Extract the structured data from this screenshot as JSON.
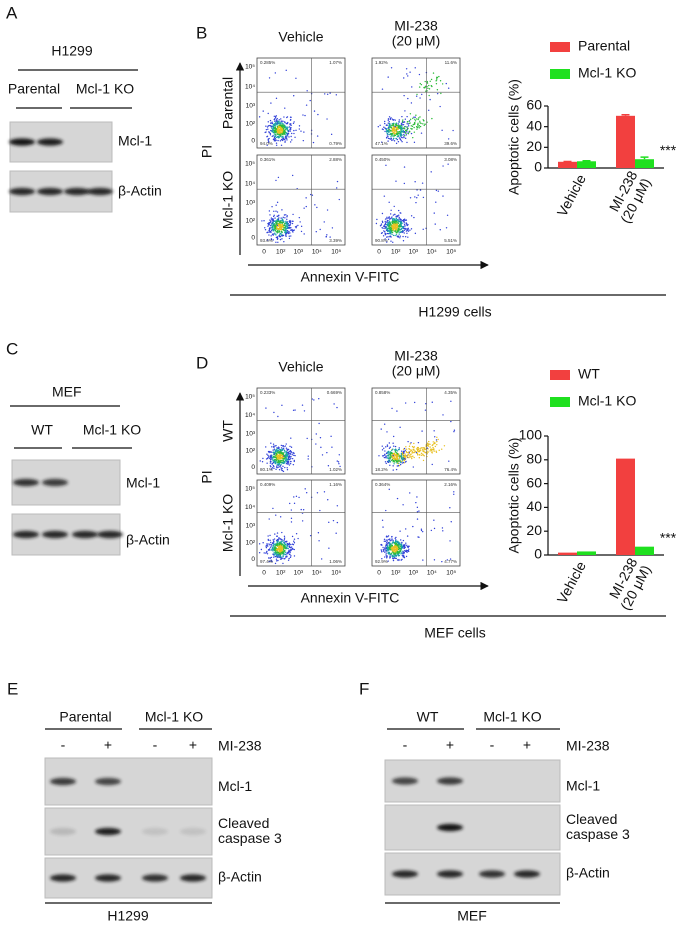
{
  "panels": {
    "A": {
      "label": "A",
      "title": "H1299",
      "groups": [
        "Parental",
        "Mcl-1 KO"
      ],
      "bands": [
        "Mcl-1",
        "β-Actin"
      ]
    },
    "B": {
      "label": "B",
      "columns": [
        "Vehicle",
        "MI-238\n(20 μM)"
      ],
      "rows": [
        "Parental",
        "Mcl-1 KO"
      ],
      "y_axis": "PI",
      "x_axis": "Annexin V-FITC",
      "axis_ticks": [
        "0",
        "10²",
        "10³",
        "10⁴",
        "10⁵"
      ],
      "quadrants": [
        [
          [
            "0.285%",
            "1.07%",
            "94.0%",
            "0.79%"
          ],
          [
            "1.92%",
            "11.6%",
            "47.1%",
            "39.6%"
          ]
        ],
        [
          [
            "0.361%",
            "2.88%",
            "93.6%",
            "3.39%"
          ],
          [
            "0.450%",
            "3.08%",
            "90.8%",
            "5.51%"
          ]
        ]
      ],
      "caption": "H1299 cells"
    },
    "C": {
      "label": "C",
      "title": "MEF",
      "groups": [
        "WT",
        "Mcl-1 KO"
      ],
      "bands": [
        "Mcl-1",
        "β-Actin"
      ]
    },
    "D": {
      "label": "D",
      "columns": [
        "Vehicle",
        "MI-238\n(20 μM)"
      ],
      "rows": [
        "WT",
        "Mcl-1 KO"
      ],
      "y_axis": "PI",
      "x_axis": "Annexin V-FITC",
      "axis_ticks": [
        "0",
        "10²",
        "10³",
        "10⁴",
        "10⁵"
      ],
      "quadrants": [
        [
          [
            "0.233%",
            "0.669%",
            "80.1%",
            "1.02%"
          ],
          [
            "0.858%",
            "4.35%",
            "18.2%",
            "76.4%"
          ]
        ],
        [
          [
            "0.409%",
            "1.16%",
            "97.4%",
            "1.06%"
          ],
          [
            "0.364%",
            "2.16%",
            "92.9%",
            "4.77%"
          ]
        ]
      ],
      "caption": "MEF cells"
    },
    "E": {
      "label": "E",
      "groups": [
        "Parental",
        "Mcl-1 KO"
      ],
      "treatment_marks": [
        "-",
        "+",
        "-",
        "+"
      ],
      "treatment": "MI-238",
      "bands": [
        "Mcl-1",
        "Cleaved\ncaspase 3",
        "β-Actin"
      ],
      "caption": "H1299"
    },
    "F": {
      "label": "F",
      "groups": [
        "WT",
        "Mcl-1 KO"
      ],
      "treatment_marks": [
        "-",
        "+",
        "-",
        "+"
      ],
      "treatment": "MI-238",
      "bands": [
        "Mcl-1",
        "Cleaved\ncaspase 3",
        "β-Actin"
      ],
      "caption": "MEF"
    }
  },
  "chart_data": [
    {
      "type": "bar",
      "ylabel": "Apoptotic cells (%)",
      "categories": [
        "Vehicle",
        "MI-238\n(20 μM)"
      ],
      "series": [
        {
          "name": "Parental",
          "color": "#f2403f",
          "values": [
            6,
            50.5
          ],
          "errors": [
            0.3,
            1
          ]
        },
        {
          "name": "Mcl-1 KO",
          "color": "#1fe01f",
          "values": [
            6.5,
            8.5
          ],
          "errors": [
            0.5,
            2
          ]
        }
      ],
      "ylim": [
        0,
        60
      ],
      "yticks": [
        0,
        20,
        40,
        60
      ],
      "annotation": "***"
    },
    {
      "type": "bar",
      "ylabel": "Apoptotic cells (%)",
      "categories": [
        "Vehicle",
        "MI-238\n(20 μM)"
      ],
      "series": [
        {
          "name": "WT",
          "color": "#f2403f",
          "values": [
            2,
            81
          ]
        },
        {
          "name": "Mcl-1 KO",
          "color": "#1fe01f",
          "values": [
            3,
            7
          ]
        }
      ],
      "ylim": [
        0,
        100
      ],
      "yticks": [
        0,
        20,
        40,
        60,
        80,
        100
      ],
      "annotation": "***"
    }
  ]
}
